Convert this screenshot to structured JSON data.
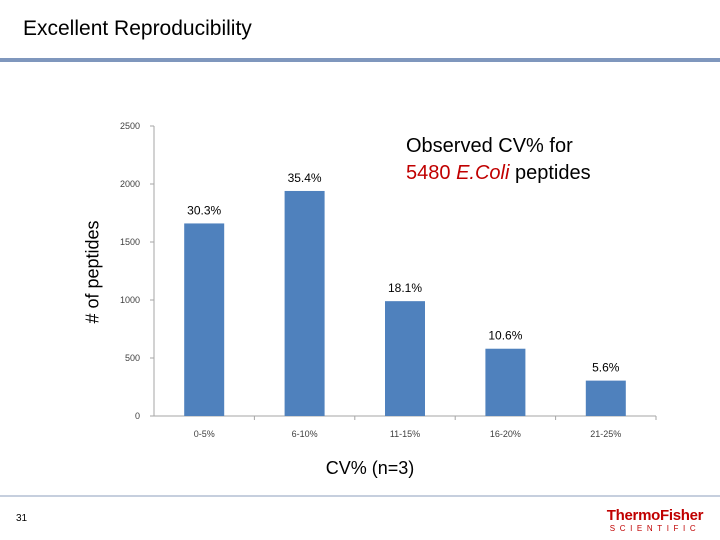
{
  "slide": {
    "title": "Excellent Reproducibility",
    "page_number": "31",
    "annotation_line1": "Observed CV% for",
    "annotation_line2_number": "5480",
    "annotation_line2_italic": "E.Coli",
    "annotation_line2_tail": "peptides",
    "logo_line1": "ThermoFisher",
    "logo_line2": "SCIENTIFIC"
  },
  "colors": {
    "bar": "#4f81bd",
    "accent_red": "#c00000",
    "rule": "#7f97bd"
  },
  "chart_data": {
    "type": "bar",
    "title": "",
    "xlabel": "CV% (n=3)",
    "ylabel": "# of peptides",
    "categories": [
      "0-5%",
      "6-10%",
      "11-15%",
      "16-20%",
      "21-25%"
    ],
    "values": [
      1660,
      1940,
      990,
      580,
      305
    ],
    "data_labels": [
      "30.3%",
      "35.4%",
      "18.1%",
      "10.6%",
      "5.6%"
    ],
    "ylim": [
      0,
      2500
    ],
    "yticks": [
      0,
      500,
      1000,
      1500,
      2000,
      2500
    ],
    "grid": false
  }
}
